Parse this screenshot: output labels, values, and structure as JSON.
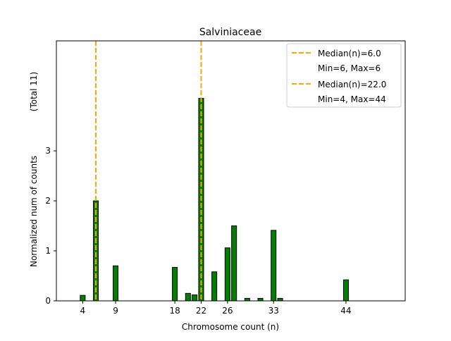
{
  "chart_data": {
    "type": "bar",
    "title": "Salviniaceae",
    "xlabel": "Chromosome count (n)",
    "ylabel": "Normalized num of counts",
    "ylabel_note": "(Total 11)",
    "xlim": [
      0,
      53
    ],
    "ylim": [
      0,
      5.2
    ],
    "xticks": [
      4,
      9,
      18,
      22,
      26,
      33,
      44
    ],
    "yticks": [
      0,
      1,
      2,
      3
    ],
    "bar_color": "#008000",
    "median_color": "#FFA500",
    "bars": [
      {
        "x": 4,
        "y": 0.11
      },
      {
        "x": 6,
        "y": 2.0
      },
      {
        "x": 9,
        "y": 0.7
      },
      {
        "x": 18,
        "y": 0.67
      },
      {
        "x": 20,
        "y": 0.15
      },
      {
        "x": 21,
        "y": 0.12
      },
      {
        "x": 22,
        "y": 4.05
      },
      {
        "x": 24,
        "y": 0.58
      },
      {
        "x": 26,
        "y": 1.06
      },
      {
        "x": 27,
        "y": 1.5
      },
      {
        "x": 29,
        "y": 0.05
      },
      {
        "x": 31,
        "y": 0.05
      },
      {
        "x": 33,
        "y": 1.41
      },
      {
        "x": 34,
        "y": 0.05
      },
      {
        "x": 44,
        "y": 0.42
      }
    ],
    "medians": [
      6.0,
      22.0
    ],
    "legend": {
      "placement": "top-right",
      "entries": [
        "Median(n)=6.0",
        "Min=6, Max=6",
        "Median(n)=22.0",
        "Min=4, Max=44"
      ]
    }
  }
}
